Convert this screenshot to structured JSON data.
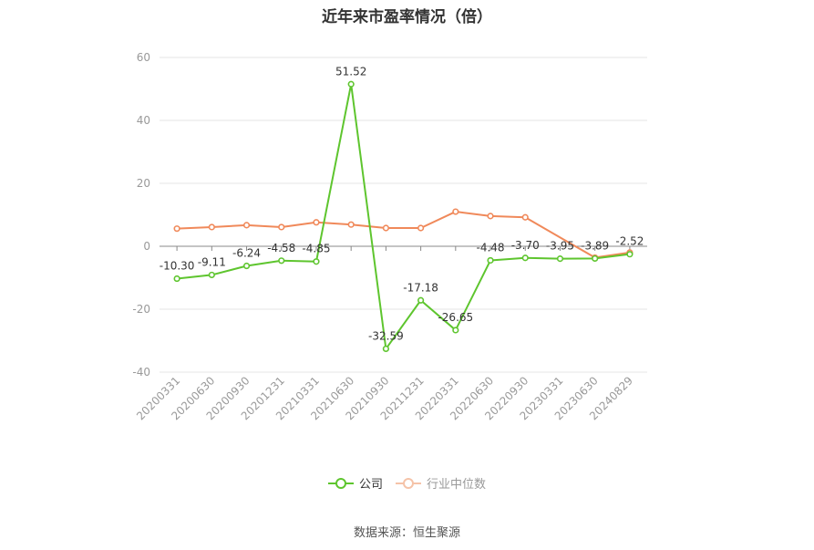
{
  "chart_data": {
    "type": "line",
    "title": "近年来市盈率情况（倍）",
    "categories": [
      "20200331",
      "20200630",
      "20200930",
      "20201231",
      "20210331",
      "20210630",
      "20210930",
      "20211231",
      "20220331",
      "20220630",
      "20220930",
      "20230331",
      "20230630",
      "20240829"
    ],
    "ylim": [
      -40,
      60
    ],
    "yticks": [
      60,
      40,
      20,
      0,
      -20,
      -40
    ],
    "grid": true,
    "legend_position": "bottom",
    "series": [
      {
        "name": "公司",
        "color": "#5ec52e",
        "values": [
          -10.3,
          -9.11,
          -6.24,
          -4.58,
          -4.85,
          51.52,
          -32.59,
          -17.18,
          -26.65,
          -4.48,
          -3.7,
          -3.95,
          -3.89,
          -2.52
        ],
        "labels": [
          "-10.30",
          "-9.11",
          "-6.24",
          "-4.58",
          "-4.85",
          "51.52",
          "-32.59",
          "-17.18",
          "-26.65",
          "-4.48",
          "-3.70",
          "-3.95",
          "-3.89",
          "-2.52"
        ]
      },
      {
        "name": "行业中位数",
        "color": "#f0895a",
        "values": [
          5.6,
          6.1,
          6.7,
          6.1,
          7.6,
          6.9,
          5.8,
          5.8,
          11.0,
          9.6,
          9.2,
          null,
          -3.6,
          -2.0
        ]
      }
    ]
  },
  "legend": {
    "company": "公司",
    "industry": "行业中位数"
  },
  "source": "数据来源：恒生聚源"
}
